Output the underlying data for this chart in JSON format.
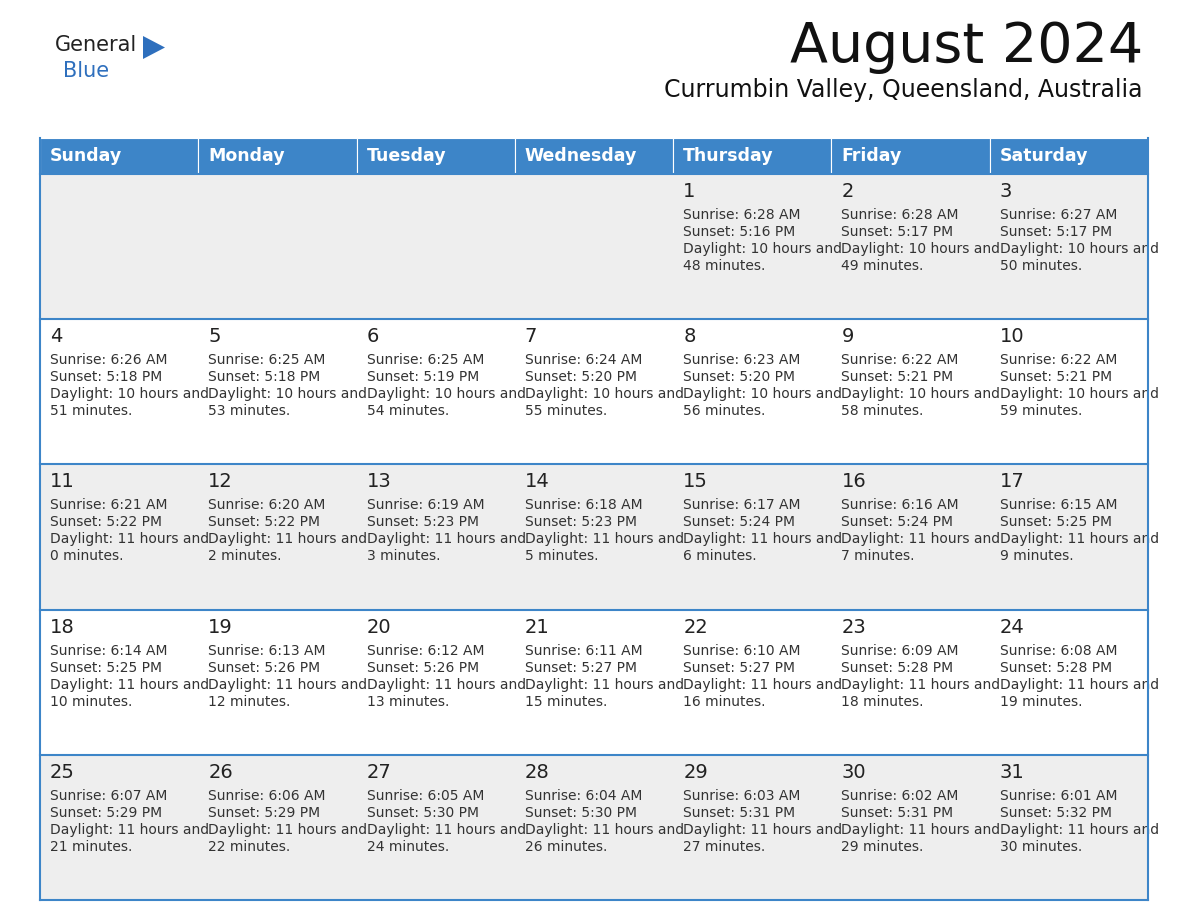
{
  "title": "August 2024",
  "subtitle": "Currumbin Valley, Queensland, Australia",
  "header_bg": "#3d85c8",
  "header_text_color": "#ffffff",
  "weekdays": [
    "Sunday",
    "Monday",
    "Tuesday",
    "Wednesday",
    "Thursday",
    "Friday",
    "Saturday"
  ],
  "row_bg_odd": "#eeeeee",
  "row_bg_even": "#ffffff",
  "cell_border_color": "#3d85c8",
  "day_number_color": "#222222",
  "text_color": "#333333",
  "title_color": "#111111",
  "logo_black": "#222222",
  "logo_blue": "#2e6fbd",
  "calendar": [
    [
      {
        "day": "",
        "sunrise": "",
        "sunset": "",
        "daylight": ""
      },
      {
        "day": "",
        "sunrise": "",
        "sunset": "",
        "daylight": ""
      },
      {
        "day": "",
        "sunrise": "",
        "sunset": "",
        "daylight": ""
      },
      {
        "day": "",
        "sunrise": "",
        "sunset": "",
        "daylight": ""
      },
      {
        "day": "1",
        "sunrise": "6:28 AM",
        "sunset": "5:16 PM",
        "daylight": "10 hours and 48 minutes."
      },
      {
        "day": "2",
        "sunrise": "6:28 AM",
        "sunset": "5:17 PM",
        "daylight": "10 hours and 49 minutes."
      },
      {
        "day": "3",
        "sunrise": "6:27 AM",
        "sunset": "5:17 PM",
        "daylight": "10 hours and 50 minutes."
      }
    ],
    [
      {
        "day": "4",
        "sunrise": "6:26 AM",
        "sunset": "5:18 PM",
        "daylight": "10 hours and 51 minutes."
      },
      {
        "day": "5",
        "sunrise": "6:25 AM",
        "sunset": "5:18 PM",
        "daylight": "10 hours and 53 minutes."
      },
      {
        "day": "6",
        "sunrise": "6:25 AM",
        "sunset": "5:19 PM",
        "daylight": "10 hours and 54 minutes."
      },
      {
        "day": "7",
        "sunrise": "6:24 AM",
        "sunset": "5:20 PM",
        "daylight": "10 hours and 55 minutes."
      },
      {
        "day": "8",
        "sunrise": "6:23 AM",
        "sunset": "5:20 PM",
        "daylight": "10 hours and 56 minutes."
      },
      {
        "day": "9",
        "sunrise": "6:22 AM",
        "sunset": "5:21 PM",
        "daylight": "10 hours and 58 minutes."
      },
      {
        "day": "10",
        "sunrise": "6:22 AM",
        "sunset": "5:21 PM",
        "daylight": "10 hours and 59 minutes."
      }
    ],
    [
      {
        "day": "11",
        "sunrise": "6:21 AM",
        "sunset": "5:22 PM",
        "daylight": "11 hours and 0 minutes."
      },
      {
        "day": "12",
        "sunrise": "6:20 AM",
        "sunset": "5:22 PM",
        "daylight": "11 hours and 2 minutes."
      },
      {
        "day": "13",
        "sunrise": "6:19 AM",
        "sunset": "5:23 PM",
        "daylight": "11 hours and 3 minutes."
      },
      {
        "day": "14",
        "sunrise": "6:18 AM",
        "sunset": "5:23 PM",
        "daylight": "11 hours and 5 minutes."
      },
      {
        "day": "15",
        "sunrise": "6:17 AM",
        "sunset": "5:24 PM",
        "daylight": "11 hours and 6 minutes."
      },
      {
        "day": "16",
        "sunrise": "6:16 AM",
        "sunset": "5:24 PM",
        "daylight": "11 hours and 7 minutes."
      },
      {
        "day": "17",
        "sunrise": "6:15 AM",
        "sunset": "5:25 PM",
        "daylight": "11 hours and 9 minutes."
      }
    ],
    [
      {
        "day": "18",
        "sunrise": "6:14 AM",
        "sunset": "5:25 PM",
        "daylight": "11 hours and 10 minutes."
      },
      {
        "day": "19",
        "sunrise": "6:13 AM",
        "sunset": "5:26 PM",
        "daylight": "11 hours and 12 minutes."
      },
      {
        "day": "20",
        "sunrise": "6:12 AM",
        "sunset": "5:26 PM",
        "daylight": "11 hours and 13 minutes."
      },
      {
        "day": "21",
        "sunrise": "6:11 AM",
        "sunset": "5:27 PM",
        "daylight": "11 hours and 15 minutes."
      },
      {
        "day": "22",
        "sunrise": "6:10 AM",
        "sunset": "5:27 PM",
        "daylight": "11 hours and 16 minutes."
      },
      {
        "day": "23",
        "sunrise": "6:09 AM",
        "sunset": "5:28 PM",
        "daylight": "11 hours and 18 minutes."
      },
      {
        "day": "24",
        "sunrise": "6:08 AM",
        "sunset": "5:28 PM",
        "daylight": "11 hours and 19 minutes."
      }
    ],
    [
      {
        "day": "25",
        "sunrise": "6:07 AM",
        "sunset": "5:29 PM",
        "daylight": "11 hours and 21 minutes."
      },
      {
        "day": "26",
        "sunrise": "6:06 AM",
        "sunset": "5:29 PM",
        "daylight": "11 hours and 22 minutes."
      },
      {
        "day": "27",
        "sunrise": "6:05 AM",
        "sunset": "5:30 PM",
        "daylight": "11 hours and 24 minutes."
      },
      {
        "day": "28",
        "sunrise": "6:04 AM",
        "sunset": "5:30 PM",
        "daylight": "11 hours and 26 minutes."
      },
      {
        "day": "29",
        "sunrise": "6:03 AM",
        "sunset": "5:31 PM",
        "daylight": "11 hours and 27 minutes."
      },
      {
        "day": "30",
        "sunrise": "6:02 AM",
        "sunset": "5:31 PM",
        "daylight": "11 hours and 29 minutes."
      },
      {
        "day": "31",
        "sunrise": "6:01 AM",
        "sunset": "5:32 PM",
        "daylight": "11 hours and 30 minutes."
      }
    ]
  ]
}
